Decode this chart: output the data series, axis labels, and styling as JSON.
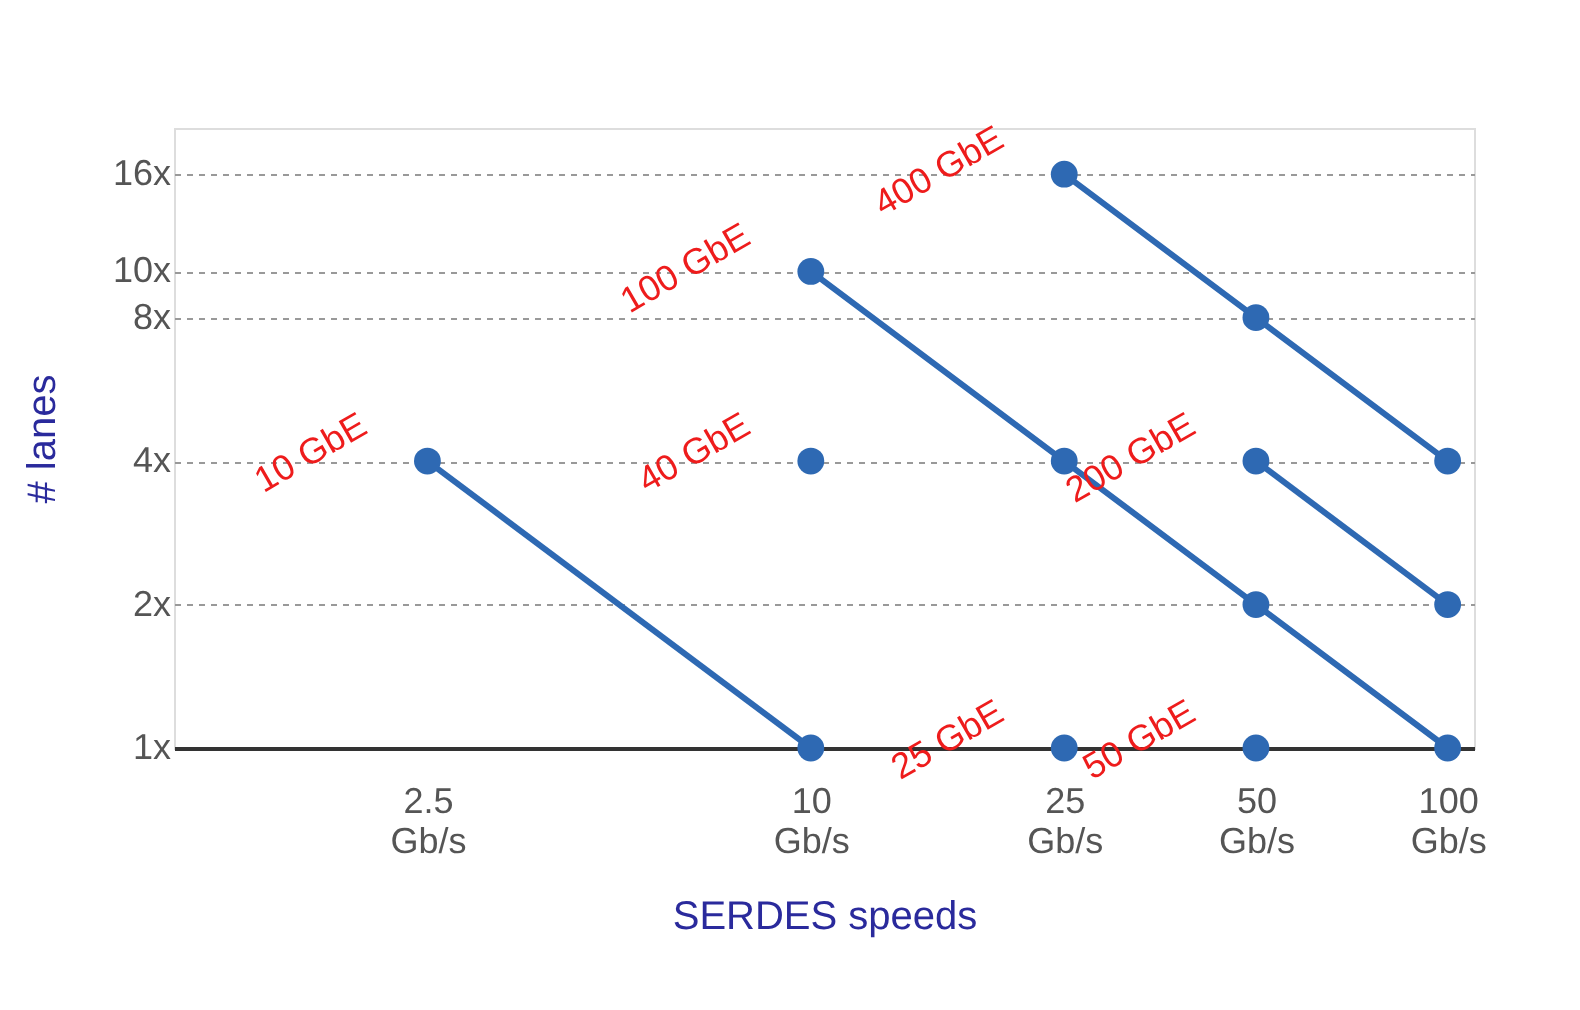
{
  "chart_data": {
    "type": "line",
    "xlabel": "SERDES speeds",
    "ylabel": "# lanes",
    "log": "xy",
    "grid": "y",
    "marker": "circle",
    "line_style": "solid",
    "xlim": [
      1,
      110
    ],
    "ylim": [
      1,
      20
    ],
    "xticks": [
      {
        "value": 2.5,
        "label": "2.5 Gb/s"
      },
      {
        "value": 10,
        "label": "10 Gb/s"
      },
      {
        "value": 25,
        "label": "25 Gb/s"
      },
      {
        "value": 50,
        "label": "50 Gb/s"
      },
      {
        "value": 100,
        "label": "100 Gb/s"
      }
    ],
    "yticks": [
      {
        "value": 1,
        "label": "1x"
      },
      {
        "value": 2,
        "label": "2x"
      },
      {
        "value": 4,
        "label": "4x"
      },
      {
        "value": 8,
        "label": "8x"
      },
      {
        "value": 10,
        "label": "10x"
      },
      {
        "value": 16,
        "label": "16x"
      }
    ],
    "series": [
      {
        "color": "#2e69b3",
        "x": [
          2.5,
          10
        ],
        "values": [
          4,
          1
        ]
      },
      {
        "color": "#2e69b3",
        "x": [
          10
        ],
        "values": [
          4
        ]
      },
      {
        "color": "#2e69b3",
        "x": [
          10,
          25,
          50,
          100
        ],
        "values": [
          10,
          4,
          2,
          1
        ]
      },
      {
        "color": "#2e69b3",
        "x": [
          25
        ],
        "values": [
          1
        ]
      },
      {
        "color": "#2e69b3",
        "x": [
          50
        ],
        "values": [
          1
        ]
      },
      {
        "color": "#2e69b3",
        "x": [
          50,
          100
        ],
        "values": [
          4,
          2
        ]
      },
      {
        "color": "#2e69b3",
        "x": [
          25,
          50,
          100
        ],
        "values": [
          16,
          8,
          4
        ]
      }
    ],
    "annotations": [
      {
        "text": "10 GbE",
        "x": 2.5,
        "y": 4
      },
      {
        "text": "40 GbE",
        "x": 10,
        "y": 4
      },
      {
        "text": "100 GbE",
        "x": 10,
        "y": 10
      },
      {
        "text": "25 GbE",
        "x": 25,
        "y": 1
      },
      {
        "text": "50 GbE",
        "x": 50,
        "y": 1
      },
      {
        "text": "200 GbE",
        "x": 50,
        "y": 4
      },
      {
        "text": "400 GbE",
        "x": 25,
        "y": 16
      }
    ]
  }
}
